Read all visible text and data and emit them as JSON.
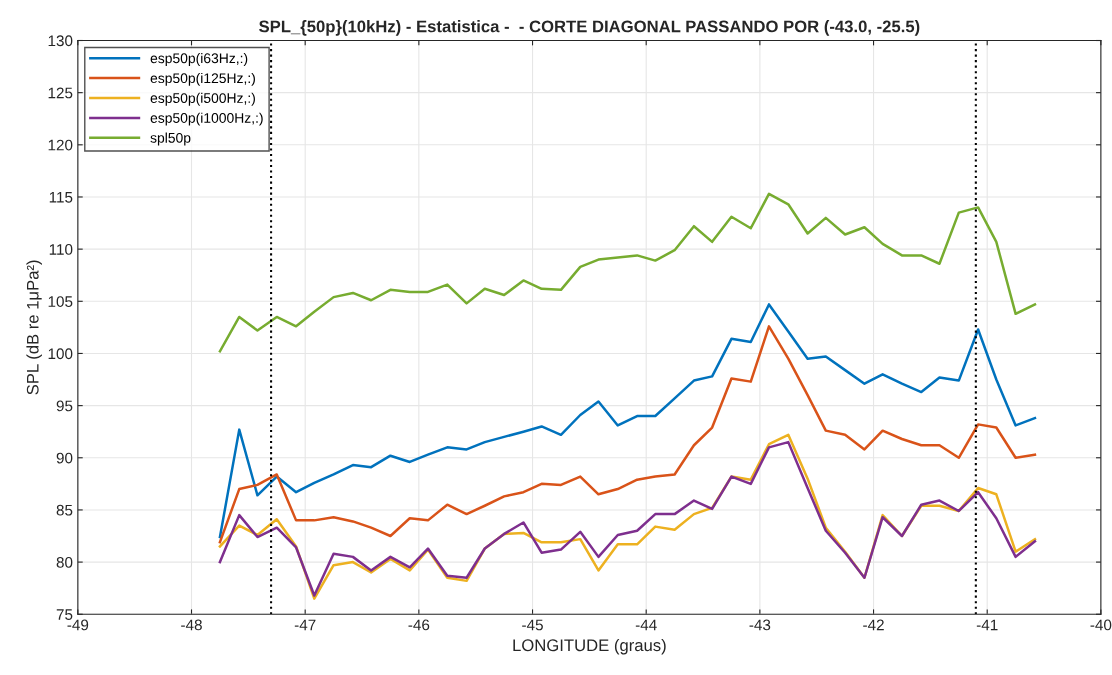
{
  "chart_data": {
    "type": "line",
    "title": "SPL_{50p}(10kHz) - Estatistica -  - CORTE DIAGONAL PASSANDO POR (-43.0, -25.5)",
    "xlabel": "LONGITUDE (graus)",
    "ylabel": "SPL (dB re 1μPa²)",
    "x": [
      -47.75,
      -47.58,
      -47.42,
      -47.25,
      -47.08,
      -46.92,
      -46.75,
      -46.58,
      -46.42,
      -46.25,
      -46.08,
      -45.92,
      -45.75,
      -45.58,
      -45.42,
      -45.25,
      -45.08,
      -44.92,
      -44.75,
      -44.58,
      -44.42,
      -44.25,
      -44.08,
      -43.92,
      -43.75,
      -43.58,
      -43.42,
      -43.25,
      -43.08,
      -42.92,
      -42.75,
      -42.58,
      -42.42,
      -42.25,
      -42.08,
      -41.92,
      -41.75,
      -41.58,
      -41.42,
      -41.25,
      -41.08,
      -40.92,
      -40.75,
      -40.58
    ],
    "series": [
      {
        "name": "esp50p(i63Hz,:)",
        "color": "#0072bd",
        "values": [
          82.4,
          92.7,
          86.4,
          88.2,
          86.7,
          87.6,
          88.4,
          89.3,
          89.1,
          90.2,
          89.6,
          90.3,
          91.0,
          90.8,
          91.5,
          92.0,
          92.5,
          93.0,
          92.2,
          94.1,
          95.4,
          93.1,
          94.0,
          94.0,
          95.7,
          97.4,
          97.8,
          101.4,
          101.1,
          104.7,
          102.1,
          99.5,
          99.7,
          98.4,
          97.1,
          98.0,
          97.1,
          96.3,
          97.7,
          97.4,
          102.3,
          97.5,
          93.1,
          93.8
        ]
      },
      {
        "name": "esp50p(i125Hz,:)",
        "color": "#d95319",
        "values": [
          81.9,
          87.0,
          87.4,
          88.4,
          84.0,
          84.0,
          84.3,
          83.9,
          83.3,
          82.5,
          84.2,
          84.0,
          85.5,
          84.6,
          85.4,
          86.3,
          86.7,
          87.5,
          87.4,
          88.2,
          86.5,
          87.0,
          87.9,
          88.2,
          88.4,
          91.2,
          92.9,
          97.6,
          97.3,
          102.6,
          99.5,
          96.0,
          92.6,
          92.2,
          90.8,
          92.6,
          91.8,
          91.2,
          91.2,
          90.0,
          93.2,
          92.9,
          90.0,
          90.3
        ]
      },
      {
        "name": "esp50p(i500Hz,:)",
        "color": "#edb120",
        "values": [
          81.5,
          83.5,
          82.6,
          84.1,
          81.5,
          76.5,
          79.7,
          80.0,
          79.0,
          80.3,
          79.2,
          81.2,
          78.5,
          78.2,
          81.3,
          82.7,
          82.8,
          81.9,
          81.9,
          82.2,
          79.2,
          81.7,
          81.7,
          83.4,
          83.1,
          84.6,
          85.2,
          88.2,
          87.9,
          91.3,
          92.2,
          88.0,
          83.3,
          81.0,
          78.5,
          84.5,
          82.5,
          85.4,
          85.4,
          84.9,
          87.1,
          86.5,
          81.0,
          82.2
        ]
      },
      {
        "name": "esp50p(i1000Hz,:)",
        "color": "#7e2f8e",
        "values": [
          80.0,
          84.5,
          82.4,
          83.3,
          81.4,
          76.8,
          80.8,
          80.5,
          79.2,
          80.5,
          79.5,
          81.3,
          78.7,
          78.5,
          81.3,
          82.7,
          83.8,
          80.9,
          81.2,
          82.9,
          80.5,
          82.6,
          83.0,
          84.6,
          84.6,
          85.9,
          85.1,
          88.2,
          87.5,
          91.0,
          91.5,
          87.1,
          83.0,
          80.9,
          78.5,
          84.3,
          82.5,
          85.5,
          85.9,
          84.9,
          86.7,
          84.2,
          80.5,
          82.0
        ]
      },
      {
        "name": "spl50p",
        "color": "#77ac30",
        "values": [
          100.2,
          103.5,
          102.2,
          103.5,
          102.6,
          104.0,
          105.4,
          105.8,
          105.1,
          106.1,
          105.9,
          105.9,
          106.6,
          104.8,
          106.2,
          105.6,
          107.0,
          106.2,
          106.1,
          108.3,
          109.0,
          109.2,
          109.4,
          108.9,
          109.9,
          112.2,
          110.7,
          113.1,
          112.0,
          115.3,
          114.3,
          111.5,
          113.0,
          111.4,
          112.1,
          110.5,
          109.4,
          109.4,
          108.6,
          113.5,
          114.0,
          110.7,
          103.8,
          104.7
        ]
      }
    ],
    "ref_lines": [
      {
        "axis": "x",
        "value": -47.3,
        "color": "#000000",
        "line_style": "dotted"
      },
      {
        "axis": "x",
        "value": -41.1,
        "color": "#000000",
        "line_style": "dotted"
      }
    ],
    "xlim": [
      -49,
      -40
    ],
    "xticks": [
      -49,
      -48,
      -47,
      -46,
      -45,
      -44,
      -43,
      -42,
      -41,
      -40
    ],
    "ylim": [
      75,
      130
    ],
    "yticks": [
      75,
      80,
      85,
      90,
      95,
      100,
      105,
      110,
      115,
      120,
      125,
      130
    ],
    "grid": true,
    "legend": "top left",
    "marker": "none",
    "line_style": "solid"
  }
}
